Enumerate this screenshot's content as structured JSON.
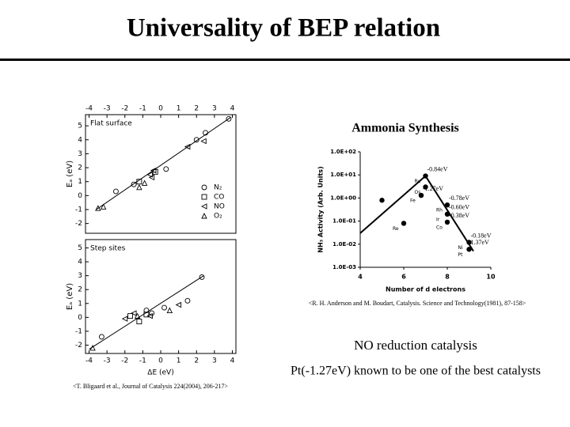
{
  "title": "Universality of BEP relation",
  "left_citation": "<T. Bligaard et al., Journal of Catalysis 224(2004), 206-217>",
  "right_heading": "Ammonia Synthesis",
  "right_citation": "<R. H. Anderson and M. Boudart, Catalysis. Science and Technology(1981), 87-158>",
  "no_heading": "NO reduction catalysis",
  "no_text": "Pt(-1.27eV) known to be one of the best catalysts",
  "chart_data": [
    {
      "type": "scatter",
      "title": "Flat surface",
      "ylabel": "Eₐ (eV)",
      "xlim": [
        -4.2,
        4.2
      ],
      "xticks": [
        -4,
        -3,
        -2,
        -1,
        0,
        1,
        2,
        3,
        4
      ],
      "xtick_side": "top",
      "ylim": [
        -2.7,
        5.8
      ],
      "yticks": [
        -2,
        -1,
        0,
        1,
        2,
        3,
        4,
        5
      ],
      "legend": "lower right",
      "fit": {
        "x": [
          -3.6,
          3.9
        ],
        "y": [
          -1,
          5.6
        ]
      },
      "series": [
        {
          "name": "N₂",
          "marker": "circle",
          "color": "#000",
          "x": [
            -2.5,
            -1.5,
            0.3,
            2.0,
            2.5,
            3.8
          ],
          "values": [
            0.3,
            0.8,
            1.9,
            4.0,
            4.5,
            5.5
          ]
        },
        {
          "name": "CO",
          "marker": "square",
          "color": "#000",
          "x": [
            -1.2,
            -0.3
          ],
          "values": [
            1.0,
            1.7
          ]
        },
        {
          "name": "NO",
          "marker": "triangle-left",
          "color": "#000",
          "x": [
            -0.6,
            -0.5,
            -0.4,
            1.5,
            2.4
          ],
          "values": [
            1.5,
            1.3,
            1.8,
            3.5,
            3.9
          ]
        },
        {
          "name": "O₂",
          "marker": "triangle-up",
          "color": "#000",
          "x": [
            -3.5,
            -3.2,
            -1.2,
            -0.9
          ],
          "values": [
            -0.9,
            -0.8,
            0.6,
            0.9
          ]
        }
      ]
    },
    {
      "type": "scatter",
      "title": "Step sites",
      "ylabel": "Eₐ (eV)",
      "xlabel": "ΔE (eV)",
      "xlim": [
        -4.2,
        4.2
      ],
      "xticks": [
        -4,
        -3,
        -2,
        -1,
        0,
        1,
        2,
        3,
        4
      ],
      "xtick_side": "bottom",
      "ylim": [
        -2.6,
        5.6
      ],
      "yticks": [
        -2,
        -1,
        0,
        1,
        2,
        3,
        4,
        5
      ],
      "fit": {
        "x": [
          -4,
          2.4
        ],
        "y": [
          -2.3,
          3.0
        ]
      },
      "series": [
        {
          "name": "N₂",
          "marker": "circle",
          "color": "#000",
          "x": [
            -3.3,
            -0.8,
            -0.5,
            0.2,
            1.5,
            2.3
          ],
          "values": [
            -1.4,
            0.5,
            0.3,
            0.7,
            1.2,
            2.9
          ]
        },
        {
          "name": "CO",
          "marker": "square",
          "color": "#000",
          "x": [
            -1.7,
            -1.2,
            -0.8
          ],
          "values": [
            0.1,
            -0.3,
            0.2
          ]
        },
        {
          "name": "NO",
          "marker": "triangle-left",
          "color": "#000",
          "x": [
            -2.0,
            -1.5,
            -0.6,
            1.0
          ],
          "values": [
            -0.1,
            0.3,
            0.1,
            0.9
          ]
        },
        {
          "name": "O₂",
          "marker": "triangle-up",
          "color": "#000",
          "x": [
            -3.8,
            -1.3,
            0.5
          ],
          "values": [
            -2.2,
            0.1,
            0.5
          ]
        }
      ]
    },
    {
      "type": "volcano",
      "xlabel": "Number of d electrons",
      "ylabel": "NH₃ Activity (Arb. Units)",
      "xlim": [
        4,
        10
      ],
      "xticks": [
        4,
        6,
        8,
        10
      ],
      "ylim": [
        0.001,
        100
      ],
      "log_y": true,
      "yticks": [
        {
          "value": 0.001,
          "label": "1.0E-03"
        },
        {
          "value": 0.01,
          "label": "1.0E-02"
        },
        {
          "value": 0.1,
          "label": "1.0E-01"
        },
        {
          "value": 1,
          "label": "1.0E+00"
        },
        {
          "value": 10,
          "label": "1.0E+01"
        },
        {
          "value": 100,
          "label": "1.0E+02"
        }
      ],
      "trend": {
        "x": [
          4,
          7,
          9.2
        ],
        "y": [
          0.03,
          9,
          0.005
        ]
      },
      "color": "#000",
      "label_color": "#b03020",
      "x": [
        5,
        6,
        6.8,
        7,
        7,
        8,
        8,
        8,
        9,
        9
      ],
      "values": [
        0.8,
        0.08,
        1.3,
        3,
        9,
        0.5,
        0.2,
        0.09,
        0.012,
        0.006
      ],
      "point_labels": [
        null,
        "Re",
        "Fe",
        "Os",
        "Ru",
        "Rh",
        "Ir",
        "Co",
        "Ni",
        "Pt"
      ],
      "energy_labels": [
        null,
        null,
        "-1.27eV",
        null,
        "-0.84eV",
        "-0.78eV",
        "-0.60eV",
        "-0.38eV",
        "-0.18eV",
        "1.37eV"
      ]
    }
  ]
}
